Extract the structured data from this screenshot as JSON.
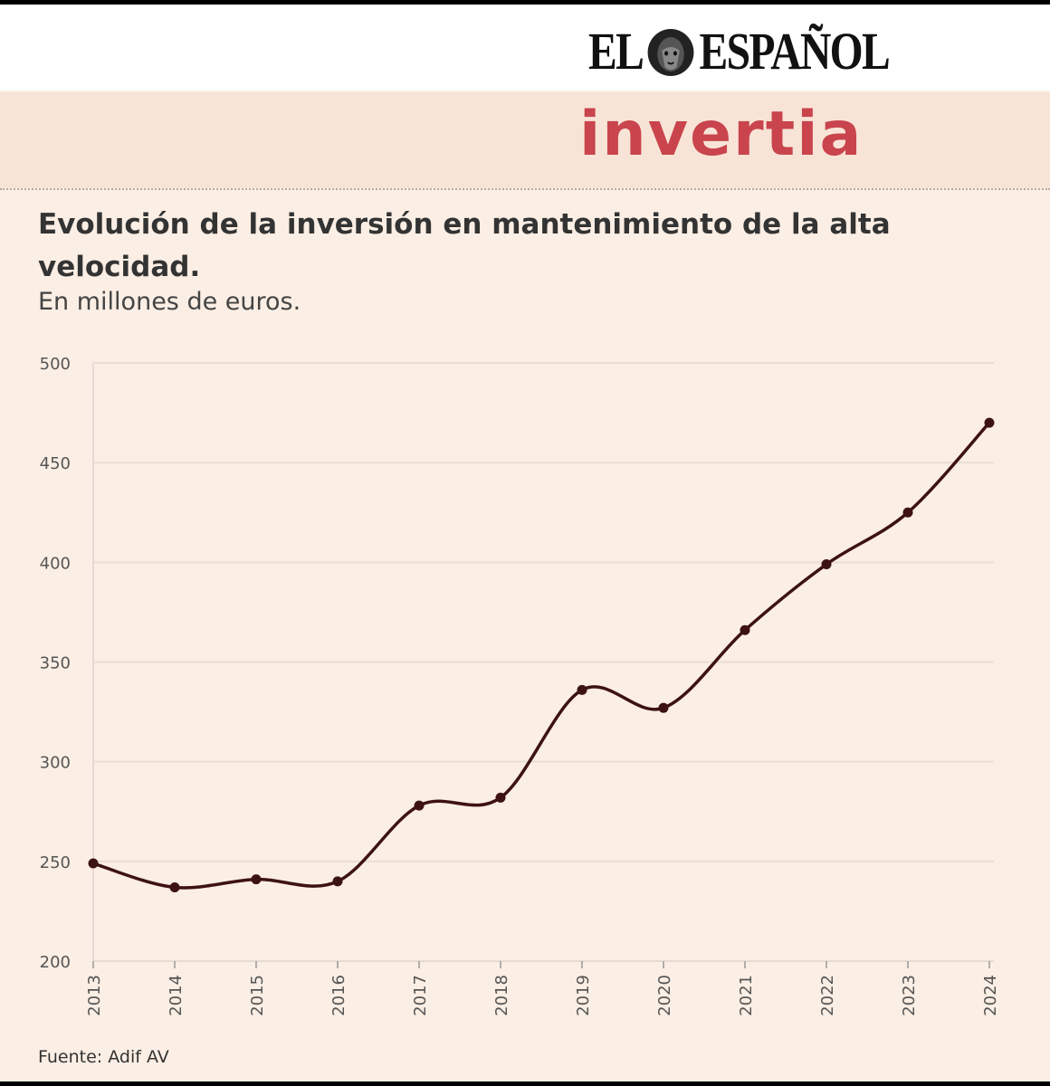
{
  "brand": {
    "name_left": "EL",
    "name_right": "ESPAÑOL",
    "logo_icon": "lion-head-icon"
  },
  "section": {
    "name": "invertia"
  },
  "chart_data": {
    "type": "line",
    "title": "Evolución de la inversión en mantenimiento de la alta velocidad.",
    "subtitle": "En millones de euros.",
    "x": [
      "2013",
      "2014",
      "2015",
      "2016",
      "2017",
      "2018",
      "2019",
      "2020",
      "2021",
      "2022",
      "2023",
      "2024"
    ],
    "y": [
      249,
      237,
      241,
      240,
      278,
      282,
      336,
      327,
      366,
      399,
      425,
      470
    ],
    "ylim": [
      200,
      500
    ],
    "yticks": [
      200,
      250,
      300,
      350,
      400,
      450,
      500
    ],
    "grid": true,
    "line_color": "#3d1212"
  },
  "source": "Fuente: Adif AV"
}
